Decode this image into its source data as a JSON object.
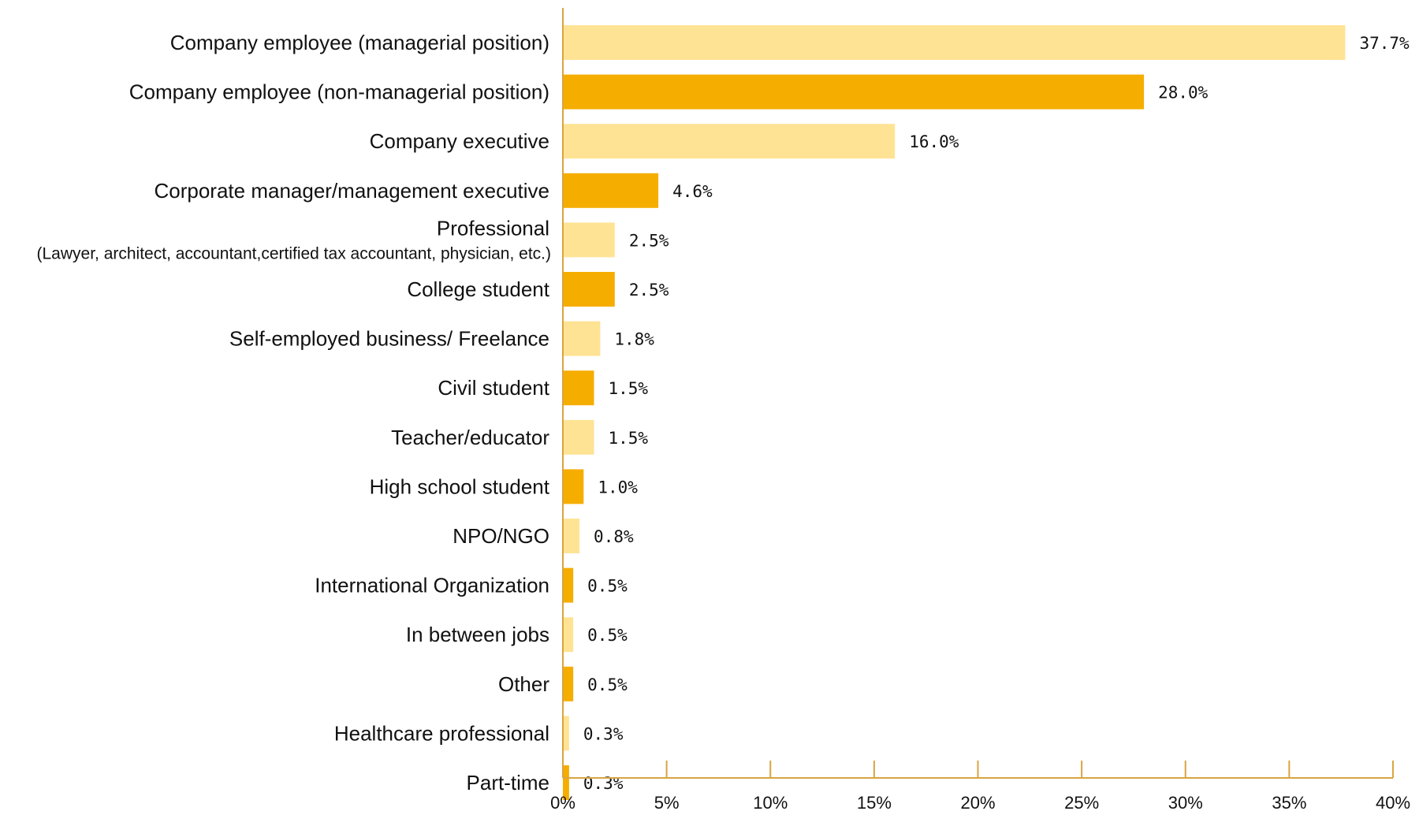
{
  "chart_data": {
    "type": "bar",
    "orientation": "horizontal",
    "categories": [
      "Company employee (managerial position)",
      "Company employee (non-managerial position)",
      "Company executive",
      "Corporate manager/management executive",
      "Professional",
      "College student",
      "Self-employed business/ Freelance",
      "Civil student",
      "Teacher/educator",
      "High school student",
      "NPO/NGO",
      "International Organization",
      "In between jobs",
      "Other",
      "Healthcare professional",
      "Part-time"
    ],
    "category_sublabels": {
      "4": "(Lawyer, architect, accountant,certified tax accountant, physician, etc.)"
    },
    "values": [
      37.7,
      28.0,
      16.0,
      4.6,
      2.5,
      2.5,
      1.8,
      1.5,
      1.5,
      1.0,
      0.8,
      0.5,
      0.5,
      0.5,
      0.3,
      0.3
    ],
    "value_labels": [
      "37.7%",
      "28.0%",
      "16.0%",
      "4.6%",
      "2.5%",
      "2.5%",
      "1.8%",
      "1.5%",
      "1.5%",
      "1.0%",
      "0.8%",
      "0.5%",
      "0.5%",
      "0.5%",
      "0.3%",
      "0.3%"
    ],
    "x_ticks": [
      0,
      5,
      10,
      15,
      20,
      25,
      30,
      35,
      40
    ],
    "x_tick_labels": [
      "0%",
      "5%",
      "10%",
      "15%",
      "20%",
      "25%",
      "30%",
      "35%",
      "40%"
    ],
    "xlim": [
      0,
      40
    ],
    "title": "",
    "xlabel": "",
    "ylabel": "",
    "grid": false,
    "colors": {
      "bar_light": "#FFE394",
      "bar_dark": "#F5AD00",
      "axis": "#D9A441"
    }
  }
}
